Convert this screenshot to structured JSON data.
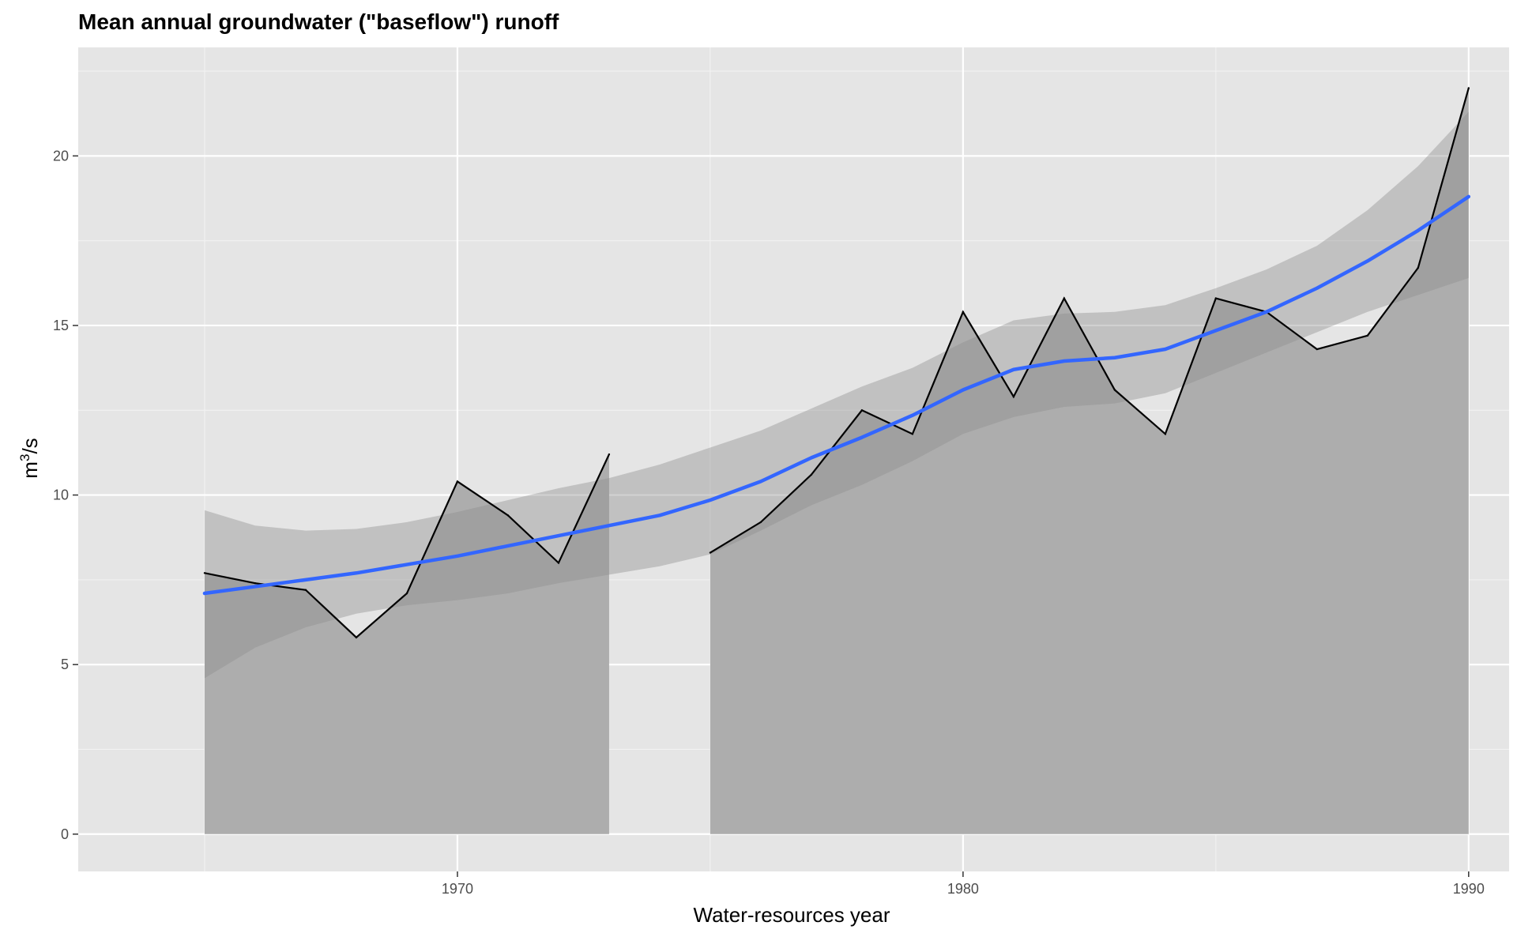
{
  "chart_data": {
    "type": "area",
    "title": "Mean annual groundwater (\"baseflow\") runoff",
    "xlabel": "Water-resources year",
    "ylabel_base": "m",
    "ylabel_sup": "3",
    "ylabel_tail": "/s",
    "xlim": [
      1962.5,
      1990.8
    ],
    "ylim": [
      -1.1,
      23.2
    ],
    "x_breaks": [
      1970,
      1980,
      1990
    ],
    "x_minor_breaks": [
      1965,
      1975,
      1985
    ],
    "y_breaks": [
      0,
      5,
      10,
      15,
      20
    ],
    "y_minor_breaks": [
      2.5,
      7.5,
      12.5,
      17.5,
      22.5
    ],
    "grid": true,
    "series": [
      {
        "type": "area_and_line",
        "segments": [
          {
            "x": [
              1965,
              1966,
              1967,
              1968,
              1969,
              1970,
              1971,
              1972,
              1973
            ],
            "y": [
              7.7,
              7.4,
              7.2,
              5.8,
              7.1,
              10.4,
              9.4,
              8.0,
              11.2
            ]
          },
          {
            "x": [
              1975,
              1976,
              1977,
              1978,
              1979,
              1980,
              1981,
              1982,
              1983,
              1984,
              1985,
              1986,
              1987,
              1988,
              1989,
              1990
            ],
            "y": [
              8.3,
              9.2,
              10.6,
              12.5,
              11.8,
              15.4,
              12.9,
              15.8,
              13.1,
              11.8,
              15.8,
              15.4,
              14.3,
              14.7,
              16.7,
              22.0
            ]
          }
        ]
      },
      {
        "type": "smooth",
        "x": [
          1965,
          1966,
          1967,
          1968,
          1969,
          1970,
          1971,
          1972,
          1973,
          1974,
          1975,
          1976,
          1977,
          1978,
          1979,
          1980,
          1981,
          1982,
          1983,
          1984,
          1985,
          1986,
          1987,
          1988,
          1989,
          1990
        ],
        "y": [
          7.1,
          7.3,
          7.5,
          7.7,
          7.95,
          8.2,
          8.5,
          8.8,
          9.1,
          9.4,
          9.85,
          10.4,
          11.1,
          11.7,
          12.35,
          13.1,
          13.7,
          13.95,
          14.05,
          14.3,
          14.85,
          15.4,
          16.1,
          16.9,
          17.8,
          18.8
        ],
        "lower": [
          4.6,
          5.5,
          6.1,
          6.5,
          6.75,
          6.9,
          7.1,
          7.4,
          7.65,
          7.9,
          8.25,
          8.95,
          9.7,
          10.3,
          11.0,
          11.8,
          12.3,
          12.6,
          12.7,
          13.0,
          13.6,
          14.2,
          14.8,
          15.4,
          15.9,
          16.4
        ],
        "upper": [
          9.55,
          9.1,
          8.95,
          9.0,
          9.2,
          9.5,
          9.85,
          10.2,
          10.5,
          10.9,
          11.4,
          11.9,
          12.55,
          13.2,
          13.75,
          14.5,
          15.15,
          15.35,
          15.4,
          15.6,
          16.1,
          16.65,
          17.35,
          18.4,
          19.7,
          21.3
        ]
      }
    ],
    "colors": {
      "panel_bg": "#e5e5e5",
      "grid_major": "#ffffff",
      "grid_minor": "#f2f2f2",
      "area_fill": "#adadad",
      "ribbon_fill": "#8c8c8c",
      "ribbon_opacity": "0.4",
      "line": "#000000",
      "smooth_line": "#3366ff"
    }
  }
}
